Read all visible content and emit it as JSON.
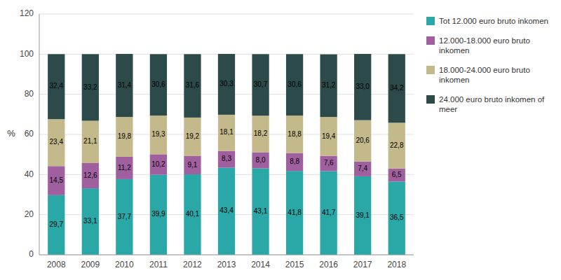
{
  "chart_data": {
    "type": "bar",
    "stacked": true,
    "data_labels": true,
    "grid": true,
    "legend": "right",
    "y_label": "%",
    "categories": [
      "2008",
      "2009",
      "2010",
      "2011",
      "2012",
      "2013",
      "2014",
      "2015",
      "2016",
      "2017",
      "2018"
    ],
    "ylim": [
      0,
      120
    ],
    "yticks": [
      0,
      20,
      40,
      60,
      80,
      100,
      120
    ],
    "series": [
      {
        "name": "Tot 12.000 euro bruto inkomen",
        "color": "#2AA8A8",
        "values": [
          29.7,
          33.1,
          37.7,
          39.9,
          40.1,
          43.4,
          43.1,
          41.8,
          41.7,
          39.1,
          36.5
        ],
        "value_labels": [
          "29,7",
          "33,1",
          "37,7",
          "39,9",
          "40,1",
          "43,4",
          "43,1",
          "41,8",
          "41,7",
          "39,1",
          "36,5"
        ]
      },
      {
        "name": "12.000-18.000 euro bruto\ninkomen",
        "color": "#A060A0",
        "values": [
          14.5,
          12.6,
          11.2,
          10.2,
          9.1,
          8.3,
          8.0,
          8.8,
          7.6,
          7.4,
          6.5
        ],
        "value_labels": [
          "14,5",
          "12,6",
          "11,2",
          "10,2",
          "9,1",
          "8,3",
          "8,0",
          "8,8",
          "7,6",
          "7,4",
          "6,5"
        ]
      },
      {
        "name": "18.000-24.000 euro bruto\ninkomen",
        "color": "#C4B98A",
        "values": [
          23.4,
          21.1,
          19.8,
          19.3,
          19.2,
          18.1,
          18.2,
          18.8,
          19.4,
          20.6,
          22.8
        ],
        "value_labels": [
          "23,4",
          "21,1",
          "19,8",
          "19,3",
          "19,2",
          "18,1",
          "18,2",
          "18,8",
          "19,4",
          "20,6",
          "22,8"
        ]
      },
      {
        "name": "24.000 euro bruto inkomen of\nmeer",
        "color": "#2C4A4A",
        "values": [
          32.4,
          33.2,
          31.4,
          30.6,
          31.6,
          30.3,
          30.7,
          30.6,
          31.2,
          33.0,
          34.2
        ],
        "value_labels": [
          "32,4",
          "33,2",
          "31,4",
          "30,6",
          "31,6",
          "30,3",
          "30,7",
          "30,6",
          "31,2",
          "33,0",
          "34,2"
        ]
      }
    ]
  }
}
